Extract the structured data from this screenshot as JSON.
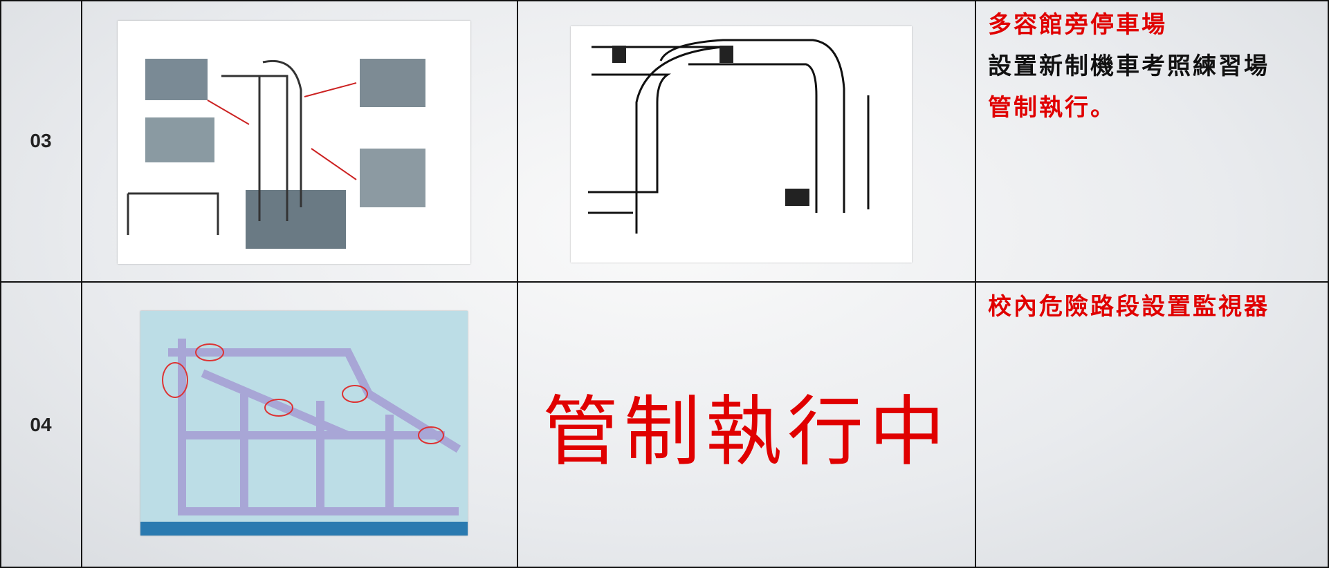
{
  "table": {
    "rows": [
      {
        "number": "03",
        "notes": [
          {
            "text": "多容館旁停車場",
            "color": "#e00000"
          },
          {
            "text": "設置新制機車考照練習場",
            "color": "#111111"
          },
          {
            "text": "管制執行。",
            "color": "#e00000"
          }
        ]
      },
      {
        "number": "04",
        "status": "管制執行中",
        "status_color": "#e00000",
        "notes": [
          {
            "text": "校內危險路段設置監視器",
            "color": "#e00000"
          }
        ]
      }
    ]
  }
}
